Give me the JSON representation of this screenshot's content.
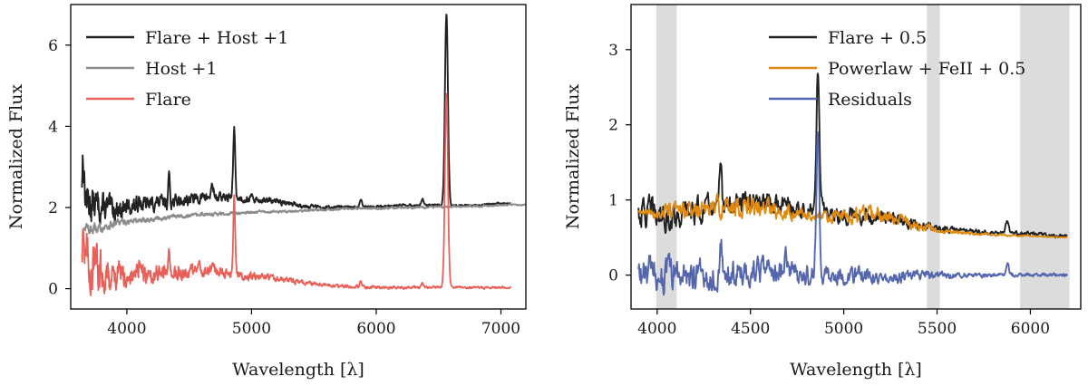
{
  "chart_data": [
    {
      "type": "line",
      "panel": "left",
      "xlabel": "Wavelength [λ]",
      "ylabel": "Normalized Flux",
      "xlim": [
        3550,
        7200
      ],
      "ylim": [
        -0.5,
        7.0
      ],
      "xticks": [
        4000,
        5000,
        6000,
        7000
      ],
      "yticks": [
        0,
        2,
        4,
        6
      ],
      "legend_position": "upper-left",
      "series": [
        {
          "name": "Flare + Host +1",
          "color": "#222222",
          "baseline": [
            [
              3640,
              2.5
            ],
            [
              3700,
              2.1
            ],
            [
              3800,
              2.0
            ],
            [
              3900,
              1.95
            ],
            [
              4000,
              2.0
            ],
            [
              4100,
              2.05
            ],
            [
              4200,
              2.1
            ],
            [
              4400,
              2.15
            ],
            [
              4600,
              2.25
            ],
            [
              4800,
              2.25
            ],
            [
              5000,
              2.2
            ],
            [
              5200,
              2.15
            ],
            [
              5400,
              2.05
            ],
            [
              5600,
              2.0
            ],
            [
              5800,
              2.0
            ],
            [
              6000,
              2.02
            ],
            [
              6200,
              2.05
            ],
            [
              6400,
              2.05
            ],
            [
              6600,
              2.05
            ],
            [
              6800,
              2.05
            ],
            [
              7000,
              2.1
            ],
            [
              7080,
              2.1
            ]
          ],
          "noise_amp": [
            [
              3640,
              0.5
            ],
            [
              3700,
              0.4
            ],
            [
              3800,
              0.3
            ],
            [
              4000,
              0.18
            ],
            [
              4500,
              0.12
            ],
            [
              5000,
              0.07
            ],
            [
              5500,
              0.04
            ],
            [
              6000,
              0.03
            ],
            [
              7080,
              0.02
            ]
          ],
          "lines": [
            {
              "center": 3650,
              "sigma": 6,
              "amp": 0.9
            },
            {
              "center": 4102,
              "sigma": 6,
              "amp": 0.35
            },
            {
              "center": 4340,
              "sigma": 6,
              "amp": 0.75
            },
            {
              "center": 4686,
              "sigma": 10,
              "amp": 0.3
            },
            {
              "center": 4861,
              "sigma": 8,
              "amp": 1.75
            },
            {
              "center": 5007,
              "sigma": 6,
              "amp": 0.15
            },
            {
              "center": 5876,
              "sigma": 8,
              "amp": 0.18
            },
            {
              "center": 6370,
              "sigma": 8,
              "amp": 0.15
            },
            {
              "center": 6563,
              "sigma": 12,
              "amp": 4.72
            }
          ]
        },
        {
          "name": "Host +1",
          "color": "#8c8c8c",
          "baseline": [
            [
              3660,
              1.55
            ],
            [
              3700,
              1.45
            ],
            [
              3800,
              1.5
            ],
            [
              3900,
              1.6
            ],
            [
              4000,
              1.65
            ],
            [
              4200,
              1.72
            ],
            [
              4400,
              1.78
            ],
            [
              4600,
              1.82
            ],
            [
              4800,
              1.85
            ],
            [
              5000,
              1.88
            ],
            [
              5200,
              1.9
            ],
            [
              5400,
              1.92
            ],
            [
              5600,
              1.95
            ],
            [
              5800,
              1.97
            ],
            [
              6000,
              1.98
            ],
            [
              6200,
              2.0
            ],
            [
              6400,
              2.0
            ],
            [
              6600,
              2.02
            ],
            [
              6800,
              2.03
            ],
            [
              7000,
              2.05
            ],
            [
              7200,
              2.07
            ]
          ],
          "noise_amp": [
            [
              3660,
              0.1
            ],
            [
              4000,
              0.07
            ],
            [
              4500,
              0.04
            ],
            [
              5000,
              0.03
            ],
            [
              7200,
              0.015
            ]
          ],
          "lines": []
        },
        {
          "name": "Flare",
          "color": "#e8605a",
          "baseline": [
            [
              3640,
              0.8
            ],
            [
              3700,
              0.6
            ],
            [
              3800,
              0.45
            ],
            [
              3900,
              0.35
            ],
            [
              4000,
              0.33
            ],
            [
              4200,
              0.35
            ],
            [
              4400,
              0.4
            ],
            [
              4600,
              0.45
            ],
            [
              4800,
              0.4
            ],
            [
              5000,
              0.3
            ],
            [
              5200,
              0.25
            ],
            [
              5400,
              0.15
            ],
            [
              5600,
              0.08
            ],
            [
              5800,
              0.05
            ],
            [
              6000,
              0.03
            ],
            [
              6200,
              0.03
            ],
            [
              6400,
              0.03
            ],
            [
              6600,
              0.03
            ],
            [
              6800,
              0.03
            ],
            [
              7000,
              0.03
            ],
            [
              7080,
              0.03
            ]
          ],
          "noise_amp": [
            [
              3640,
              0.7
            ],
            [
              3700,
              0.55
            ],
            [
              3800,
              0.4
            ],
            [
              4000,
              0.22
            ],
            [
              4500,
              0.15
            ],
            [
              5000,
              0.08
            ],
            [
              5500,
              0.04
            ],
            [
              6000,
              0.03
            ],
            [
              7080,
              0.02
            ]
          ],
          "lines": [
            {
              "center": 3650,
              "sigma": 6,
              "amp": 1.1
            },
            {
              "center": 4102,
              "sigma": 6,
              "amp": 0.4
            },
            {
              "center": 4340,
              "sigma": 6,
              "amp": 0.7
            },
            {
              "center": 4686,
              "sigma": 10,
              "amp": 0.25
            },
            {
              "center": 4861,
              "sigma": 8,
              "amp": 1.85
            },
            {
              "center": 5876,
              "sigma": 8,
              "amp": 0.15
            },
            {
              "center": 6370,
              "sigma": 8,
              "amp": 0.12
            },
            {
              "center": 6563,
              "sigma": 12,
              "amp": 4.8
            }
          ]
        }
      ]
    },
    {
      "type": "line",
      "panel": "right",
      "xlabel": "Wavelength [λ]",
      "ylabel": "Normalized Flux",
      "xlim": [
        3860,
        6270
      ],
      "ylim": [
        -0.45,
        3.6
      ],
      "xticks": [
        4000,
        4500,
        5000,
        5500,
        6000
      ],
      "yticks": [
        0,
        1,
        2,
        3
      ],
      "legend_position": "upper-center",
      "shaded_bands": [
        [
          3995,
          4105
        ],
        [
          5445,
          5515
        ],
        [
          5945,
          6210
        ]
      ],
      "series": [
        {
          "name": "Flare + 0.5",
          "color": "#222222",
          "baseline": [
            [
              3900,
              0.85
            ],
            [
              4000,
              0.8
            ],
            [
              4100,
              0.8
            ],
            [
              4200,
              0.85
            ],
            [
              4300,
              0.9
            ],
            [
              4400,
              0.95
            ],
            [
              4500,
              0.95
            ],
            [
              4600,
              0.95
            ],
            [
              4700,
              0.9
            ],
            [
              4800,
              0.85
            ],
            [
              4900,
              0.85
            ],
            [
              5000,
              0.8
            ],
            [
              5100,
              0.8
            ],
            [
              5200,
              0.78
            ],
            [
              5300,
              0.72
            ],
            [
              5400,
              0.67
            ],
            [
              5500,
              0.62
            ],
            [
              5600,
              0.6
            ],
            [
              5700,
              0.58
            ],
            [
              5800,
              0.56
            ],
            [
              5900,
              0.55
            ],
            [
              6000,
              0.55
            ],
            [
              6100,
              0.53
            ],
            [
              6200,
              0.52
            ]
          ],
          "noise_amp": [
            [
              3900,
              0.2
            ],
            [
              4100,
              0.15
            ],
            [
              4500,
              0.12
            ],
            [
              5000,
              0.1
            ],
            [
              5400,
              0.06
            ],
            [
              5600,
              0.03
            ],
            [
              6200,
              0.02
            ]
          ],
          "lines": [
            {
              "center": 4340,
              "sigma": 6,
              "amp": 0.45
            },
            {
              "center": 4686,
              "sigma": 10,
              "amp": 0.15
            },
            {
              "center": 4861,
              "sigma": 8,
              "amp": 1.9
            },
            {
              "center": 5876,
              "sigma": 8,
              "amp": 0.18
            }
          ]
        },
        {
          "name": "Powerlaw + FeII + 0.5",
          "color": "#e08a10",
          "baseline": [
            [
              3900,
              0.83
            ],
            [
              4000,
              0.82
            ],
            [
              4100,
              0.83
            ],
            [
              4200,
              0.86
            ],
            [
              4300,
              0.89
            ],
            [
              4400,
              0.92
            ],
            [
              4500,
              0.92
            ],
            [
              4600,
              0.9
            ],
            [
              4700,
              0.86
            ],
            [
              4800,
              0.8
            ],
            [
              4900,
              0.77
            ],
            [
              5000,
              0.78
            ],
            [
              5100,
              0.8
            ],
            [
              5200,
              0.8
            ],
            [
              5300,
              0.74
            ],
            [
              5400,
              0.66
            ],
            [
              5500,
              0.6
            ],
            [
              5600,
              0.57
            ],
            [
              5700,
              0.55
            ],
            [
              5800,
              0.54
            ],
            [
              5900,
              0.53
            ],
            [
              6000,
              0.52
            ],
            [
              6100,
              0.51
            ],
            [
              6200,
              0.5
            ]
          ],
          "noise_amp": [
            [
              3900,
              0.02
            ],
            [
              4050,
              0.1
            ],
            [
              4500,
              0.12
            ],
            [
              4900,
              0.06
            ],
            [
              5100,
              0.1
            ],
            [
              5400,
              0.05
            ],
            [
              5600,
              0.02
            ],
            [
              6200,
              0.0
            ]
          ],
          "lines": []
        },
        {
          "name": "Residuals",
          "color": "#5466ad",
          "baseline": [
            [
              3900,
              0.0
            ],
            [
              4000,
              0.0
            ],
            [
              4200,
              0.0
            ],
            [
              4400,
              0.0
            ],
            [
              4600,
              0.05
            ],
            [
              4800,
              0.0
            ],
            [
              5000,
              0.0
            ],
            [
              5200,
              -0.02
            ],
            [
              5400,
              0.0
            ],
            [
              5600,
              0.0
            ],
            [
              5800,
              0.0
            ],
            [
              6000,
              0.0
            ],
            [
              6200,
              0.0
            ]
          ],
          "noise_amp": [
            [
              3900,
              0.22
            ],
            [
              4100,
              0.2
            ],
            [
              4500,
              0.15
            ],
            [
              5000,
              0.1
            ],
            [
              5400,
              0.06
            ],
            [
              5600,
              0.03
            ],
            [
              6200,
              0.02
            ]
          ],
          "lines": [
            {
              "center": 4340,
              "sigma": 6,
              "amp": 0.45
            },
            {
              "center": 4686,
              "sigma": 12,
              "amp": 0.2
            },
            {
              "center": 4861,
              "sigma": 8,
              "amp": 1.9
            },
            {
              "center": 5876,
              "sigma": 8,
              "amp": 0.15
            }
          ]
        }
      ]
    }
  ]
}
